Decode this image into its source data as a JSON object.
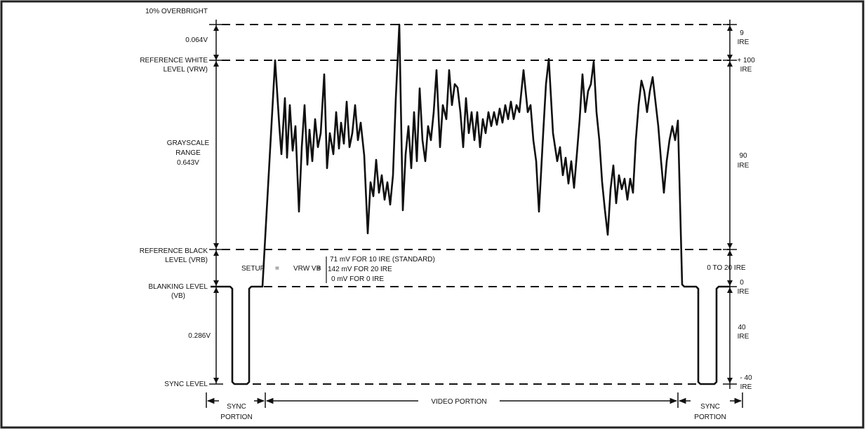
{
  "labels": {
    "overbright": "10% OVERBRIGHT",
    "overbright_voltage": "0.064V",
    "ref_white_1": "REFERENCE WHITE",
    "ref_white_2": "LEVEL (VRW)",
    "grayscale_1": "GRAYSCALE",
    "grayscale_2": "RANGE",
    "grayscale_3": "0.643V",
    "ref_black_1": "REFERENCE BLACK",
    "ref_black_2": "LEVEL (VRB)",
    "blanking_1": "BLANKING LEVEL",
    "blanking_2": "(VB)",
    "sync_voltage": "0.286V",
    "sync_level": "SYNC LEVEL"
  },
  "setup": {
    "label": "SETUP",
    "equals": "=",
    "expr": "VRW VB",
    "equals2": "=",
    "line1": "71 mV FOR 10 IRE (STANDARD)",
    "line2": "142 mV FOR 20 IRE",
    "line3": "0 mV FOR 0 IRE"
  },
  "ire": {
    "nine_1": "9",
    "nine_2": "IRE",
    "plus100_1": "+ 100",
    "plus100_2": "IRE",
    "ninety_1": "90",
    "ninety_2": "IRE",
    "zero_to_20": "0 TO 20 IRE",
    "zero_1": "0",
    "zero_2": "IRE",
    "forty_1": "40",
    "forty_2": "IRE",
    "minus40_1": "- 40",
    "minus40_2": "IRE"
  },
  "portions": {
    "sync_left_1": "SYNC",
    "sync_left_2": "PORTION",
    "video": "VIDEO PORTION",
    "sync_right_1": "SYNC",
    "sync_right_2": "PORTION"
  }
}
